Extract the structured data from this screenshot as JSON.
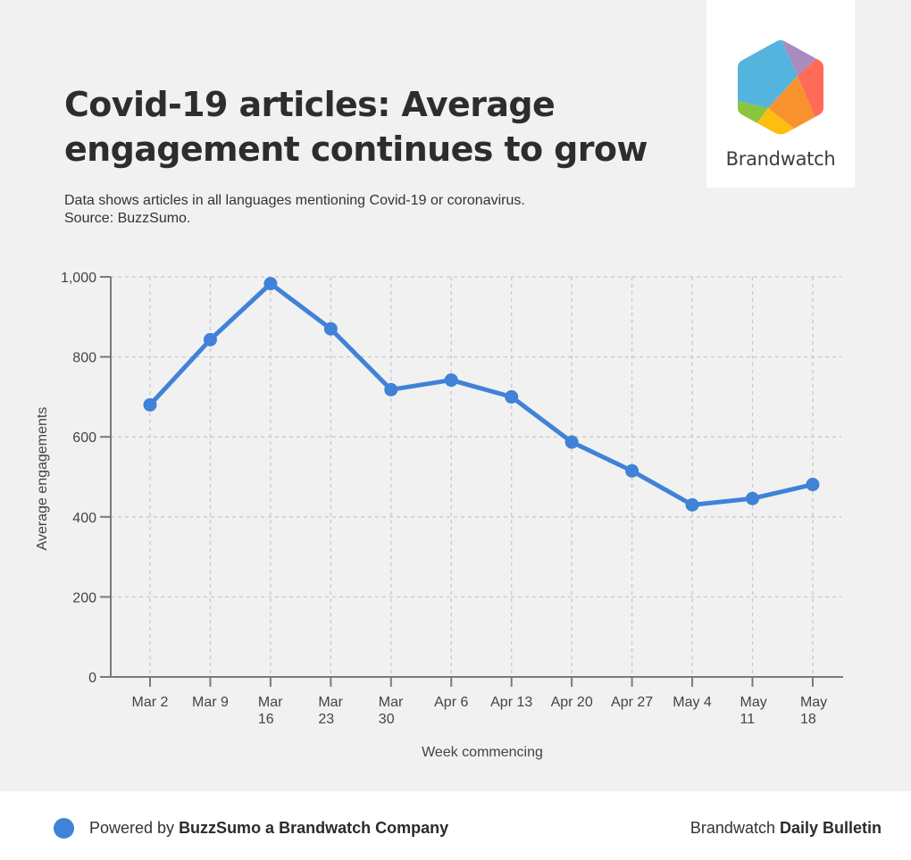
{
  "header": {
    "title_line1": "Covid-19 articles: Average",
    "title_line2": "engagement continues to grow",
    "subtitle_line1": "Data shows articles in all languages mentioning Covid-19 or coronavirus.",
    "subtitle_line2": "Source: BuzzSumo."
  },
  "logo": {
    "icon": "brandwatch-hexagon-icon",
    "text": "Brandwatch",
    "colors": {
      "blue": "#55b4de",
      "purple": "#a98bbf",
      "red": "#ff6b57",
      "orange": "#f7922f",
      "green": "#8ac53f",
      "yellow": "#fdbe10"
    }
  },
  "chart_data": {
    "type": "line",
    "title": "Covid-19 articles: Average engagement continues to grow",
    "xlabel": "Week commencing",
    "ylabel": "Average engagements",
    "categories": [
      [
        "Mar 2"
      ],
      [
        "Mar 9"
      ],
      [
        "Mar",
        "16"
      ],
      [
        "Mar",
        "23"
      ],
      [
        "Mar",
        "30"
      ],
      [
        "Apr 6"
      ],
      [
        "Apr 13"
      ],
      [
        "Apr 20"
      ],
      [
        "Apr 27"
      ],
      [
        "May 4"
      ],
      [
        "May",
        "11"
      ],
      [
        "May",
        "18"
      ]
    ],
    "series": [
      {
        "name": "Average engagements",
        "color": "#3f82d8",
        "values": [
          680,
          843,
          983,
          870,
          718,
          742,
          700,
          587,
          515,
          430,
          446,
          481
        ]
      }
    ],
    "ylim": [
      0,
      1000
    ],
    "yticks": [
      0,
      200,
      400,
      600,
      800,
      1000
    ],
    "ytick_labels": [
      "0",
      "200",
      "400",
      "600",
      "800",
      "1,000"
    ],
    "grid": true,
    "legend": "none"
  },
  "footer": {
    "dot_color": "#3f82d8",
    "powered_by": "Powered by ",
    "powered_by_bold": "BuzzSumo a Brandwatch Company",
    "right_regular": "Brandwatch ",
    "right_bold": "Daily Bulletin"
  }
}
